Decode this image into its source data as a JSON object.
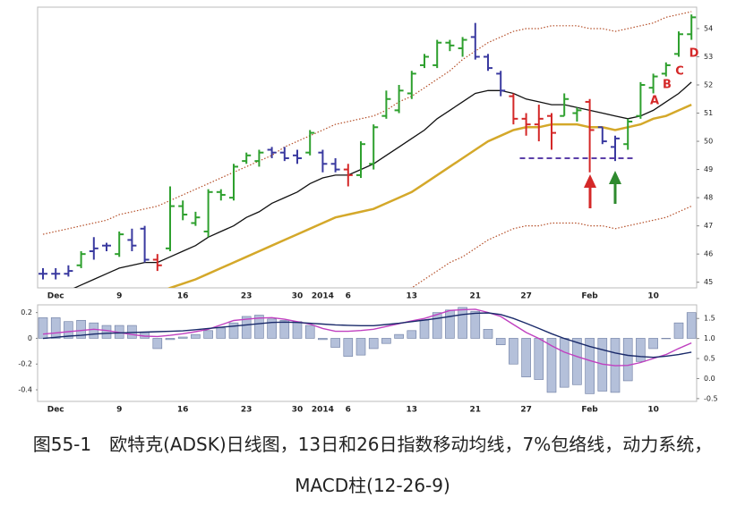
{
  "chart_data": [
    {
      "type": "ohlc",
      "categories": [
        null,
        "Dec",
        null,
        null,
        null,
        null,
        "9",
        null,
        null,
        null,
        null,
        "16",
        null,
        null,
        null,
        null,
        "23",
        null,
        null,
        null,
        "30",
        null,
        "2014",
        null,
        "6",
        null,
        null,
        null,
        null,
        "13",
        null,
        null,
        null,
        null,
        "21",
        null,
        null,
        null,
        "27",
        null,
        null,
        null,
        null,
        "Feb",
        null,
        null,
        null,
        null,
        "10",
        null,
        null,
        null
      ],
      "open": [
        45.3,
        45.3,
        45.3,
        45.6,
        46.1,
        46.3,
        46.0,
        46.5,
        46.9,
        45.8,
        46.2,
        47.7,
        47.1,
        46.8,
        48.2,
        48.0,
        49.3,
        49.3,
        49.7,
        49.6,
        49.5,
        49.6,
        49.6,
        49.2,
        49.0,
        48.8,
        49.2,
        50.9,
        51.1,
        51.7,
        52.7,
        52.7,
        53.5,
        53.3,
        53.7,
        53.0,
        52.4,
        51.6,
        50.8,
        50.6,
        50.9,
        50.9,
        51.0,
        51.4,
        50.5,
        49.8,
        49.9,
        50.9,
        51.9,
        52.4,
        53.1,
        53.8
      ],
      "high": [
        45.5,
        45.5,
        45.6,
        46.1,
        46.6,
        46.4,
        46.8,
        46.9,
        47.0,
        46.0,
        48.4,
        47.9,
        47.5,
        48.3,
        48.3,
        49.2,
        49.6,
        49.7,
        49.8,
        49.8,
        49.7,
        50.4,
        49.7,
        49.4,
        49.2,
        50.0,
        50.6,
        51.8,
        52.0,
        52.5,
        53.1,
        53.6,
        53.6,
        53.7,
        54.2,
        53.1,
        52.5,
        51.7,
        51.0,
        51.3,
        51.0,
        51.7,
        51.2,
        51.5,
        50.5,
        50.2,
        50.8,
        52.1,
        52.4,
        52.8,
        53.9,
        54.5
      ],
      "low": [
        45.1,
        45.1,
        45.2,
        45.5,
        45.8,
        46.1,
        45.9,
        46.1,
        45.7,
        45.4,
        46.1,
        47.2,
        47.0,
        46.6,
        47.9,
        47.9,
        49.2,
        49.1,
        49.4,
        49.3,
        49.2,
        49.5,
        48.9,
        48.9,
        48.4,
        48.7,
        49.0,
        50.8,
        51.0,
        51.5,
        52.6,
        52.6,
        53.2,
        53.0,
        52.9,
        52.5,
        51.6,
        50.6,
        50.2,
        50.0,
        49.7,
        50.9,
        50.7,
        48.9,
        49.9,
        49.3,
        49.7,
        50.8,
        51.7,
        52.3,
        53.0,
        53.6
      ],
      "close": [
        45.3,
        45.3,
        45.4,
        46.0,
        46.2,
        46.3,
        46.7,
        46.3,
        45.8,
        45.6,
        47.7,
        47.4,
        47.3,
        48.2,
        48.1,
        49.1,
        49.5,
        49.6,
        49.6,
        49.4,
        49.4,
        50.3,
        49.2,
        49.0,
        48.8,
        49.9,
        50.5,
        51.5,
        51.8,
        52.4,
        53.0,
        53.5,
        53.4,
        53.6,
        53.0,
        52.6,
        51.8,
        50.8,
        50.6,
        50.8,
        50.3,
        51.5,
        51.1,
        50.4,
        50.0,
        50.1,
        50.7,
        52.0,
        52.3,
        52.7,
        53.8,
        54.4
      ],
      "bar_colors": [
        "#3a3aa0",
        "#3a3aa0",
        "#3a3aa0",
        "#2ea02e",
        "#3a3aa0",
        "#3a3aa0",
        "#2ea02e",
        "#3a3aa0",
        "#3a3aa0",
        "#d42828",
        "#2ea02e",
        "#2ea02e",
        "#2ea02e",
        "#2ea02e",
        "#2ea02e",
        "#2ea02e",
        "#2ea02e",
        "#2ea02e",
        "#3a3aa0",
        "#3a3aa0",
        "#3a3aa0",
        "#2ea02e",
        "#3a3aa0",
        "#3a3aa0",
        "#d42828",
        "#2ea02e",
        "#2ea02e",
        "#2ea02e",
        "#2ea02e",
        "#2ea02e",
        "#2ea02e",
        "#2ea02e",
        "#2ea02e",
        "#2ea02e",
        "#3a3aa0",
        "#3a3aa0",
        "#3a3aa0",
        "#d42828",
        "#d42828",
        "#d42828",
        "#d42828",
        "#2ea02e",
        "#2ea02e",
        "#d42828",
        "#3a3aa0",
        "#3a3aa0",
        "#2ea02e",
        "#2ea02e",
        "#2ea02e",
        "#2ea02e",
        "#2ea02e",
        "#2ea02e"
      ],
      "overlays": [
        {
          "color": "#111111",
          "width": 1.3,
          "values": [
            44.4,
            44.5,
            44.7,
            44.9,
            45.1,
            45.3,
            45.5,
            45.6,
            45.7,
            45.7,
            45.9,
            46.1,
            46.3,
            46.6,
            46.8,
            47.0,
            47.3,
            47.5,
            47.8,
            48.0,
            48.2,
            48.5,
            48.7,
            48.8,
            48.8,
            49.0,
            49.2,
            49.5,
            49.8,
            50.1,
            50.4,
            50.8,
            51.1,
            51.4,
            51.7,
            51.8,
            51.8,
            51.7,
            51.5,
            51.4,
            51.3,
            51.3,
            51.2,
            51.1,
            51.0,
            50.9,
            50.8,
            50.9,
            51.1,
            51.4,
            51.7,
            52.1
          ]
        },
        {
          "color": "#d4a82a",
          "width": 2.5,
          "values": [
            43.6,
            43.7,
            43.8,
            43.9,
            44.0,
            44.1,
            44.3,
            44.4,
            44.5,
            44.6,
            44.8,
            44.95,
            45.1,
            45.3,
            45.5,
            45.7,
            45.9,
            46.1,
            46.3,
            46.5,
            46.7,
            46.9,
            47.1,
            47.3,
            47.4,
            47.5,
            47.6,
            47.8,
            48.0,
            48.2,
            48.5,
            48.8,
            49.1,
            49.4,
            49.7,
            50.0,
            50.2,
            50.4,
            50.5,
            50.5,
            50.6,
            50.6,
            50.6,
            50.5,
            50.5,
            50.4,
            50.5,
            50.6,
            50.8,
            50.9,
            51.1,
            51.3
          ]
        },
        {
          "color": "#b5502a",
          "width": 1.2,
          "dash": true,
          "values": [
            46.7,
            46.8,
            46.9,
            47.0,
            47.1,
            47.2,
            47.4,
            47.5,
            47.6,
            47.7,
            47.9,
            48.1,
            48.3,
            48.5,
            48.7,
            48.9,
            49.1,
            49.3,
            49.5,
            49.8,
            50.0,
            50.2,
            50.4,
            50.6,
            50.7,
            50.8,
            50.9,
            51.1,
            51.4,
            51.6,
            51.9,
            52.2,
            52.5,
            52.9,
            53.2,
            53.5,
            53.7,
            53.9,
            54.0,
            54.0,
            54.1,
            54.1,
            54.1,
            54.0,
            54.0,
            53.9,
            54.0,
            54.1,
            54.2,
            54.4,
            54.5,
            54.6
          ]
        },
        {
          "color": "#b5502a",
          "width": 1.2,
          "dash": true,
          "values": [
            40.5,
            40.6,
            40.7,
            40.8,
            40.9,
            41.0,
            41.2,
            41.3,
            41.4,
            41.5,
            41.7,
            41.8,
            41.9,
            42.1,
            42.3,
            42.5,
            42.7,
            42.9,
            43.1,
            43.2,
            43.4,
            43.6,
            43.8,
            44.0,
            44.1,
            44.2,
            44.3,
            44.5,
            44.6,
            44.8,
            45.1,
            45.4,
            45.7,
            45.9,
            46.2,
            46.5,
            46.7,
            46.9,
            47.0,
            47.0,
            47.1,
            47.1,
            47.1,
            47.0,
            47.0,
            46.9,
            47.0,
            47.1,
            47.2,
            47.3,
            47.5,
            47.7
          ]
        }
      ],
      "support": 49.4,
      "support_color": "#5b3fa8",
      "annotations": [
        "A",
        "B",
        "C",
        "D"
      ],
      "ylim": [
        44.8,
        54.76
      ],
      "yticks": [
        45,
        46,
        47,
        48,
        49,
        50,
        51,
        52,
        53,
        54
      ]
    },
    {
      "type": "macd",
      "categories": [
        null,
        "Dec",
        null,
        null,
        null,
        null,
        "9",
        null,
        null,
        null,
        null,
        "16",
        null,
        null,
        null,
        null,
        "23",
        null,
        null,
        null,
        "30",
        null,
        "2014",
        null,
        "6",
        null,
        null,
        null,
        null,
        "13",
        null,
        null,
        null,
        null,
        "21",
        null,
        null,
        null,
        "27",
        null,
        null,
        null,
        null,
        "Feb",
        null,
        null,
        null,
        null,
        "10",
        null,
        null,
        null
      ],
      "values": [
        0.16,
        0.16,
        0.13,
        0.14,
        0.12,
        0.1,
        0.1,
        0.1,
        0.05,
        -0.08,
        -0.01,
        0.01,
        0.03,
        0.06,
        0.08,
        0.12,
        0.17,
        0.18,
        0.15,
        0.14,
        0.13,
        0.1,
        -0.01,
        -0.07,
        -0.14,
        -0.13,
        -0.08,
        -0.04,
        0.03,
        0.06,
        0.14,
        0.2,
        0.22,
        0.24,
        0.21,
        0.07,
        -0.05,
        -0.2,
        -0.3,
        -0.32,
        -0.42,
        -0.38,
        -0.36,
        -0.43,
        -0.41,
        -0.42,
        -0.33,
        -0.18,
        -0.08,
        0.0,
        0.12,
        0.2
      ],
      "color": "#b4c0da",
      "edge_color": "#6a7aa0",
      "series": [
        {
          "color": "#c040c0",
          "axis": "y2",
          "values": [
            1.11,
            1.14,
            1.17,
            1.2,
            1.23,
            1.2,
            1.15,
            1.1,
            1.06,
            1.05,
            1.08,
            1.12,
            1.17,
            1.23,
            1.34,
            1.45,
            1.48,
            1.51,
            1.52,
            1.48,
            1.42,
            1.36,
            1.25,
            1.18,
            1.18,
            1.2,
            1.23,
            1.3,
            1.37,
            1.44,
            1.5,
            1.6,
            1.7,
            1.72,
            1.73,
            1.65,
            1.55,
            1.35,
            1.15,
            1.0,
            0.82,
            0.66,
            0.55,
            0.45,
            0.36,
            0.32,
            0.33,
            0.4,
            0.5,
            0.6,
            0.75,
            0.89
          ]
        },
        {
          "color": "#1a2a6a",
          "axis": "y2",
          "values": [
            1.0,
            1.03,
            1.06,
            1.08,
            1.11,
            1.13,
            1.14,
            1.15,
            1.16,
            1.17,
            1.18,
            1.19,
            1.22,
            1.25,
            1.28,
            1.31,
            1.34,
            1.37,
            1.4,
            1.41,
            1.4,
            1.38,
            1.36,
            1.34,
            1.33,
            1.32,
            1.32,
            1.35,
            1.38,
            1.42,
            1.46,
            1.5,
            1.55,
            1.6,
            1.63,
            1.64,
            1.6,
            1.5,
            1.38,
            1.25,
            1.12,
            1.0,
            0.9,
            0.8,
            0.72,
            0.64,
            0.58,
            0.55,
            0.53,
            0.56,
            0.6,
            0.66
          ]
        }
      ],
      "ylim": [
        -0.49,
        0.26
      ],
      "yticks": [
        0.2,
        0,
        -0.2,
        -0.4
      ],
      "y2lim": [
        -0.57,
        1.84
      ],
      "y2ticks": [
        1.5,
        {
          "value": 1,
          "label": "1.0"
        },
        0.5,
        {
          "value": 0,
          "label": "0.0"
        },
        -0.5
      ]
    }
  ],
  "caption": "图55-1　欧特克(ADSK)日线图，13日和26日指数移动均线，7%包络线，动力系统，MACD柱(12-26-9)"
}
